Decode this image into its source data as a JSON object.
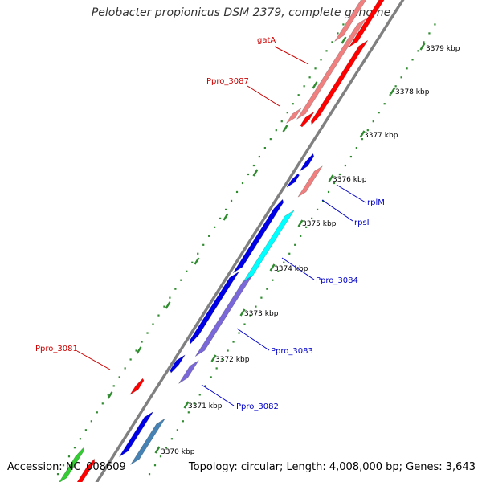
{
  "title": "Pelobacter propionicus DSM 2379, complete genome",
  "footer": {
    "accession": "Accession: NC_008609",
    "summary": "Topology: circular; Length: 4,008,000 bp; Genes: 3,643"
  },
  "colors": {
    "backbone": "#808080",
    "tick_dots": "#2e8b2e",
    "label_red": "#cc0000",
    "label_blue": "#0000cc",
    "red": "#ff0000",
    "salmon": "#f08080",
    "blue": "#0000e6",
    "cyan": "#00ffff",
    "slate": "#7b68d8",
    "steel": "#4682b4",
    "green": "#33cc33"
  },
  "ticks": [
    {
      "label": "3379 kbp"
    },
    {
      "label": "3378 kbp"
    },
    {
      "label": "3377 kbp"
    },
    {
      "label": "3376 kbp"
    },
    {
      "label": "3375 kbp"
    },
    {
      "label": "3374 kbp"
    },
    {
      "label": "3373 kbp"
    },
    {
      "label": "3372 kbp"
    },
    {
      "label": "3371 kbp"
    },
    {
      "label": "3370 kbp"
    }
  ],
  "genes": [
    {
      "name": "gatA",
      "color": "salmon"
    },
    {
      "name": "Ppro_3087",
      "color": "red"
    },
    {
      "name": "rplM",
      "color": "blue"
    },
    {
      "name": "rpsI",
      "color": "salmon"
    },
    {
      "name": "Ppro_3084",
      "color": "cyan"
    },
    {
      "name": "Ppro_3083",
      "color": "slate"
    },
    {
      "name": "Ppro_3082",
      "color": "slate"
    },
    {
      "name": "Ppro_3081",
      "color": "red"
    }
  ]
}
